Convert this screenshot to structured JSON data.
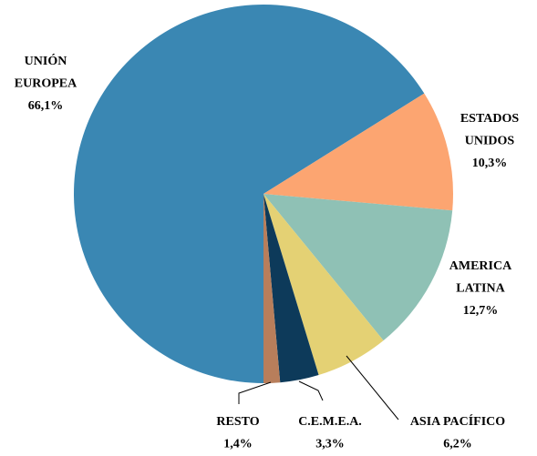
{
  "chart_data": {
    "type": "pie",
    "categories": [
      [
        "UNIÓN",
        "EUROPEA"
      ],
      [
        "ESTADOS",
        "UNIDOS"
      ],
      [
        "AMERICA",
        "LATINA"
      ],
      [
        "ASIA PACÍFICO"
      ],
      [
        "C.E.M.E.A."
      ],
      [
        "RESTO"
      ]
    ],
    "values": [
      66.1,
      10.3,
      12.7,
      6.2,
      3.3,
      1.4
    ],
    "value_labels": [
      "66,1%",
      "10,3%",
      "12,7%",
      "6,2%",
      "3,3%",
      "1,4%"
    ],
    "colors": [
      "#3a87b3",
      "#fca571",
      "#8fc1b5",
      "#e4d174",
      "#0d3a5a",
      "#b87e5b"
    ]
  }
}
